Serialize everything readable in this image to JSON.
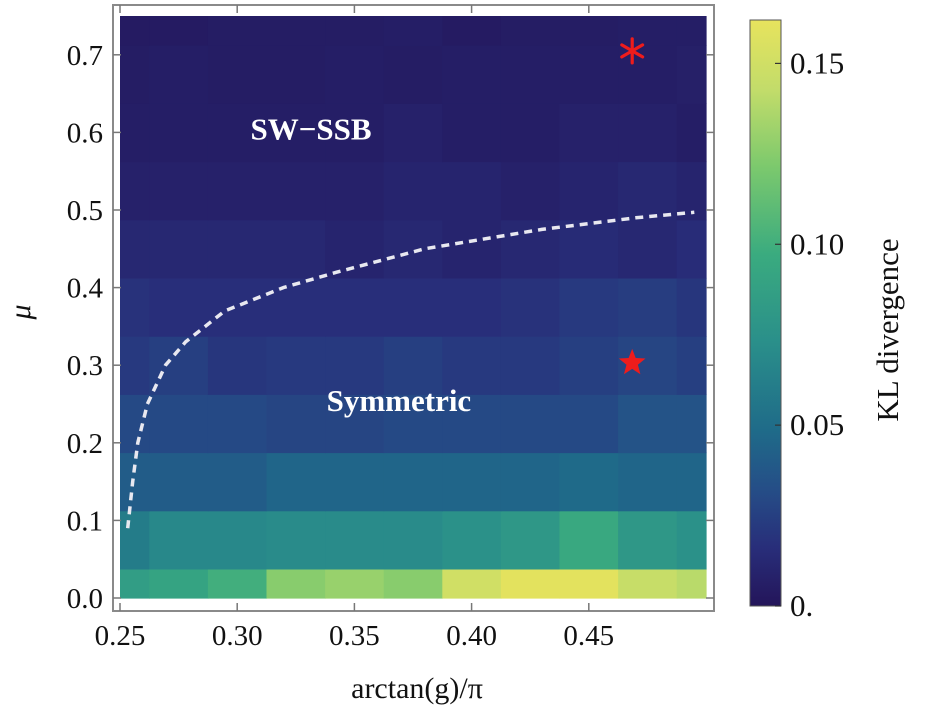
{
  "chart_data": {
    "type": "heatmap",
    "title": "",
    "xlabel": "arctan(g)/π",
    "ylabel": "μ",
    "xlim": [
      0.25,
      0.5
    ],
    "ylim": [
      0.0,
      0.75
    ],
    "x_ticks": [
      "0.25",
      "0.30",
      "0.35",
      "0.40",
      "0.45"
    ],
    "x_tick_values": [
      0.25,
      0.3,
      0.35,
      0.4,
      0.45
    ],
    "y_ticks": [
      "0.0",
      "0.1",
      "0.2",
      "0.3",
      "0.4",
      "0.5",
      "0.6",
      "0.7"
    ],
    "y_tick_values": [
      0.0,
      0.1,
      0.2,
      0.3,
      0.4,
      0.5,
      0.6,
      0.7
    ],
    "x_edges": [
      0.25,
      0.2625,
      0.2875,
      0.3125,
      0.3375,
      0.3625,
      0.3875,
      0.4125,
      0.4375,
      0.4625,
      0.4875,
      0.5
    ],
    "y_edges": [
      0.0,
      0.0375,
      0.1125,
      0.1875,
      0.2625,
      0.3375,
      0.4125,
      0.4875,
      0.5625,
      0.6375,
      0.7125,
      0.75
    ],
    "kl_values_rows_bottom_to_top": [
      [
        0.085,
        0.09,
        0.1,
        0.125,
        0.13,
        0.125,
        0.15,
        0.16,
        0.16,
        0.145,
        0.14
      ],
      [
        0.06,
        0.068,
        0.068,
        0.07,
        0.07,
        0.07,
        0.075,
        0.08,
        0.095,
        0.08,
        0.075
      ],
      [
        0.04,
        0.04,
        0.04,
        0.045,
        0.045,
        0.045,
        0.045,
        0.045,
        0.048,
        0.045,
        0.045
      ],
      [
        0.03,
        0.03,
        0.03,
        0.028,
        0.028,
        0.03,
        0.03,
        0.03,
        0.03,
        0.035,
        0.035
      ],
      [
        0.022,
        0.025,
        0.02,
        0.022,
        0.022,
        0.025,
        0.022,
        0.022,
        0.025,
        0.028,
        0.025
      ],
      [
        0.018,
        0.016,
        0.016,
        0.016,
        0.016,
        0.016,
        0.016,
        0.018,
        0.022,
        0.024,
        0.02
      ],
      [
        0.012,
        0.012,
        0.012,
        0.012,
        0.01,
        0.012,
        0.01,
        0.012,
        0.014,
        0.012,
        0.015
      ],
      [
        0.008,
        0.008,
        0.008,
        0.008,
        0.008,
        0.01,
        0.01,
        0.008,
        0.01,
        0.012,
        0.01
      ],
      [
        0.006,
        0.006,
        0.006,
        0.006,
        0.006,
        0.008,
        0.006,
        0.006,
        0.008,
        0.008,
        0.006
      ],
      [
        0.005,
        0.006,
        0.005,
        0.005,
        0.006,
        0.005,
        0.006,
        0.006,
        0.006,
        0.006,
        0.007
      ],
      [
        0.004,
        0.004,
        0.005,
        0.005,
        0.005,
        0.006,
        0.004,
        0.005,
        0.005,
        0.006,
        0.006
      ]
    ],
    "boundary_curve": {
      "style": "dashed",
      "color": "#e8e8f0",
      "points": [
        [
          0.2533,
          0.09
        ],
        [
          0.2554,
          0.15
        ],
        [
          0.2576,
          0.2
        ],
        [
          0.2617,
          0.25
        ],
        [
          0.2694,
          0.3
        ],
        [
          0.278,
          0.33
        ],
        [
          0.2947,
          0.37
        ],
        [
          0.3197,
          0.4
        ],
        [
          0.3426,
          0.42
        ],
        [
          0.38,
          0.45
        ],
        [
          0.43,
          0.475
        ],
        [
          0.47,
          0.49
        ],
        [
          0.495,
          0.497
        ]
      ]
    },
    "markers": [
      {
        "x": 0.4685,
        "y": 0.705,
        "symbol": "asterisk",
        "color": "#ee1c1c"
      },
      {
        "x": 0.4685,
        "y": 0.303,
        "symbol": "star",
        "color": "#ee1c1c"
      }
    ],
    "annotations": [
      {
        "text": "SW−SSB",
        "x": 0.3315,
        "y": 0.605
      },
      {
        "text": "Symmetric",
        "x": 0.369,
        "y": 0.255
      }
    ],
    "colorbar": {
      "label": "KL divergence",
      "colormap": "viridis",
      "range": [
        0.0,
        0.162
      ],
      "ticks": [
        "0.",
        "0.05",
        "0.10",
        "0.15"
      ],
      "tick_values": [
        0.0,
        0.05,
        0.1,
        0.15
      ]
    }
  }
}
